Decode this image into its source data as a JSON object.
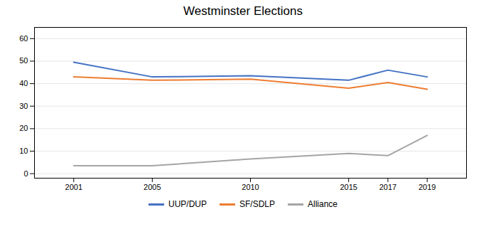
{
  "chart_data": {
    "type": "line",
    "title": "Westminster Elections",
    "x": [
      2001,
      2005,
      2010,
      2015,
      2017,
      2019
    ],
    "series": [
      {
        "name": "UUP/DUP",
        "color": "#4472C4",
        "values": [
          49.5,
          43.0,
          43.5,
          41.5,
          46.0,
          43.0
        ]
      },
      {
        "name": "SF/SDLP",
        "color": "#ED7D31",
        "values": [
          43.0,
          41.5,
          42.0,
          38.0,
          40.5,
          37.5
        ]
      },
      {
        "name": "Alliance",
        "color": "#A5A5A5",
        "values": [
          3.5,
          3.5,
          6.5,
          9.0,
          8.0,
          17.0
        ]
      }
    ],
    "xlim": [
      1999,
      2021
    ],
    "xticks": [
      2001,
      2005,
      2010,
      2015,
      2017,
      2019
    ],
    "ylim": [
      -2,
      65
    ],
    "yticks": [
      0,
      10,
      20,
      30,
      40,
      50,
      60
    ],
    "grid": "y",
    "legend": "bottom"
  }
}
